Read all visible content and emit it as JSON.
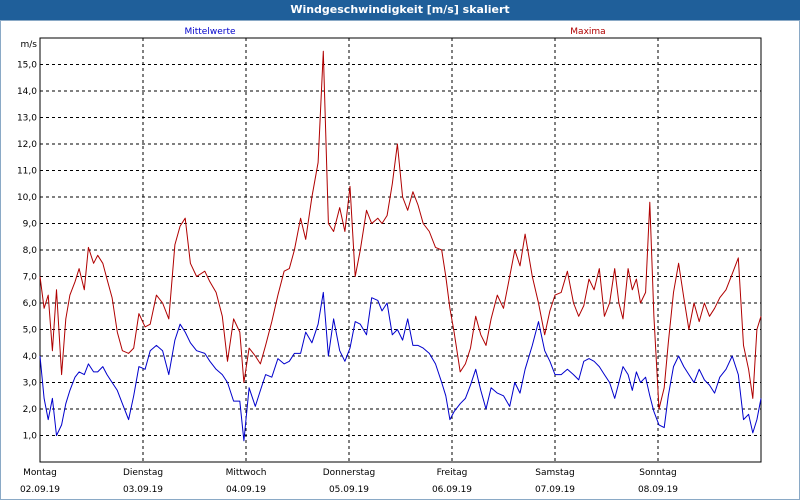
{
  "window": {
    "title": "Windgeschwindigkeit [m/s] skaliert"
  },
  "chart_data": {
    "type": "line",
    "title": "Windgeschwindigkeit [m/s] skaliert",
    "ylabel": "m/s",
    "ylim": [
      0,
      16
    ],
    "yticks": [
      "1,0",
      "2,0",
      "3,0",
      "4,0",
      "5,0",
      "6,0",
      "7,0",
      "8,0",
      "9,0",
      "10,0",
      "11,0",
      "12,0",
      "13,0",
      "14,0",
      "15,0"
    ],
    "xlim": [
      0,
      7
    ],
    "grid": true,
    "legend_placement": "top",
    "days": [
      {
        "name": "Montag",
        "date": "02.09.19"
      },
      {
        "name": "Dienstag",
        "date": "03.09.19"
      },
      {
        "name": "Mittwoch",
        "date": "04.09.19"
      },
      {
        "name": "Donnerstag",
        "date": "05.09.19"
      },
      {
        "name": "Freitag",
        "date": "06.09.19"
      },
      {
        "name": "Samstag",
        "date": "07.09.19"
      },
      {
        "name": "Sonntag",
        "date": "08.09.19"
      }
    ],
    "series": [
      {
        "name": "Mittelwerte",
        "color": "#0000cc",
        "points": [
          [
            0.0,
            4.0
          ],
          [
            0.04,
            2.4
          ],
          [
            0.08,
            1.6
          ],
          [
            0.12,
            2.4
          ],
          [
            0.16,
            1.0
          ],
          [
            0.21,
            1.4
          ],
          [
            0.25,
            2.2
          ],
          [
            0.29,
            2.7
          ],
          [
            0.34,
            3.2
          ],
          [
            0.38,
            3.4
          ],
          [
            0.43,
            3.3
          ],
          [
            0.47,
            3.7
          ],
          [
            0.52,
            3.4
          ],
          [
            0.56,
            3.4
          ],
          [
            0.61,
            3.6
          ],
          [
            0.65,
            3.3
          ],
          [
            0.7,
            3.0
          ],
          [
            0.75,
            2.7
          ],
          [
            0.8,
            2.2
          ],
          [
            0.86,
            1.6
          ],
          [
            0.91,
            2.5
          ],
          [
            0.96,
            3.6
          ],
          [
            1.02,
            3.5
          ],
          [
            1.07,
            4.2
          ],
          [
            1.13,
            4.4
          ],
          [
            1.19,
            4.2
          ],
          [
            1.25,
            3.3
          ],
          [
            1.31,
            4.6
          ],
          [
            1.36,
            5.2
          ],
          [
            1.41,
            4.9
          ],
          [
            1.46,
            4.5
          ],
          [
            1.52,
            4.2
          ],
          [
            1.6,
            4.1
          ],
          [
            1.65,
            3.8
          ],
          [
            1.71,
            3.5
          ],
          [
            1.77,
            3.3
          ],
          [
            1.82,
            3.0
          ],
          [
            1.88,
            2.3
          ],
          [
            1.94,
            2.3
          ],
          [
            1.98,
            0.8
          ],
          [
            2.03,
            2.8
          ],
          [
            2.09,
            2.1
          ],
          [
            2.14,
            2.7
          ],
          [
            2.19,
            3.3
          ],
          [
            2.25,
            3.2
          ],
          [
            2.31,
            3.9
          ],
          [
            2.37,
            3.7
          ],
          [
            2.42,
            3.8
          ],
          [
            2.47,
            4.1
          ],
          [
            2.53,
            4.1
          ],
          [
            2.58,
            4.9
          ],
          [
            2.64,
            4.5
          ],
          [
            2.7,
            5.2
          ],
          [
            2.75,
            6.4
          ],
          [
            2.8,
            4.0
          ],
          [
            2.85,
            5.4
          ],
          [
            2.91,
            4.2
          ],
          [
            2.96,
            3.8
          ],
          [
            3.01,
            4.3
          ],
          [
            3.06,
            5.3
          ],
          [
            3.11,
            5.2
          ],
          [
            3.17,
            4.8
          ],
          [
            3.22,
            6.2
          ],
          [
            3.28,
            6.1
          ],
          [
            3.32,
            5.7
          ],
          [
            3.37,
            6.0
          ],
          [
            3.42,
            4.8
          ],
          [
            3.47,
            5.0
          ],
          [
            3.52,
            4.6
          ],
          [
            3.57,
            5.4
          ],
          [
            3.62,
            4.4
          ],
          [
            3.67,
            4.4
          ],
          [
            3.72,
            4.3
          ],
          [
            3.78,
            4.1
          ],
          [
            3.84,
            3.7
          ],
          [
            3.9,
            3.0
          ],
          [
            3.94,
            2.5
          ],
          [
            3.98,
            1.6
          ],
          [
            4.02,
            1.9
          ],
          [
            4.08,
            2.2
          ],
          [
            4.13,
            2.4
          ],
          [
            4.18,
            2.9
          ],
          [
            4.23,
            3.5
          ],
          [
            4.28,
            2.7
          ],
          [
            4.33,
            2.0
          ],
          [
            4.38,
            2.8
          ],
          [
            4.44,
            2.6
          ],
          [
            4.5,
            2.5
          ],
          [
            4.56,
            2.1
          ],
          [
            4.61,
            3.0
          ],
          [
            4.66,
            2.6
          ],
          [
            4.71,
            3.5
          ],
          [
            4.78,
            4.4
          ],
          [
            4.84,
            5.3
          ],
          [
            4.9,
            4.2
          ],
          [
            4.95,
            3.8
          ],
          [
            5.0,
            3.3
          ],
          [
            5.06,
            3.3
          ],
          [
            5.12,
            3.5
          ],
          [
            5.18,
            3.3
          ],
          [
            5.23,
            3.1
          ],
          [
            5.28,
            3.8
          ],
          [
            5.33,
            3.9
          ],
          [
            5.38,
            3.8
          ],
          [
            5.43,
            3.6
          ],
          [
            5.48,
            3.3
          ],
          [
            5.53,
            3.0
          ],
          [
            5.58,
            2.4
          ],
          [
            5.62,
            3.0
          ],
          [
            5.66,
            3.6
          ],
          [
            5.71,
            3.3
          ],
          [
            5.75,
            2.7
          ],
          [
            5.79,
            3.4
          ],
          [
            5.83,
            3.0
          ],
          [
            5.88,
            3.2
          ],
          [
            5.92,
            2.5
          ],
          [
            5.96,
            1.9
          ],
          [
            6.01,
            1.4
          ],
          [
            6.06,
            1.3
          ],
          [
            6.1,
            2.5
          ],
          [
            6.15,
            3.6
          ],
          [
            6.2,
            4.0
          ],
          [
            6.25,
            3.6
          ],
          [
            6.3,
            3.3
          ],
          [
            6.35,
            3.0
          ],
          [
            6.4,
            3.5
          ],
          [
            6.45,
            3.1
          ],
          [
            6.5,
            2.9
          ],
          [
            6.55,
            2.6
          ],
          [
            6.6,
            3.2
          ],
          [
            6.66,
            3.5
          ],
          [
            6.72,
            4.0
          ],
          [
            6.78,
            3.3
          ],
          [
            6.83,
            1.6
          ],
          [
            6.88,
            1.8
          ],
          [
            6.92,
            1.1
          ],
          [
            6.96,
            1.6
          ],
          [
            7.0,
            2.4
          ]
        ]
      },
      {
        "name": "Maxima",
        "color": "#b00000",
        "points": [
          [
            0.0,
            7.0
          ],
          [
            0.04,
            5.8
          ],
          [
            0.08,
            6.3
          ],
          [
            0.12,
            4.2
          ],
          [
            0.16,
            6.5
          ],
          [
            0.21,
            3.3
          ],
          [
            0.25,
            5.4
          ],
          [
            0.29,
            6.3
          ],
          [
            0.34,
            6.8
          ],
          [
            0.38,
            7.3
          ],
          [
            0.43,
            6.5
          ],
          [
            0.47,
            8.1
          ],
          [
            0.52,
            7.5
          ],
          [
            0.56,
            7.8
          ],
          [
            0.61,
            7.5
          ],
          [
            0.65,
            6.9
          ],
          [
            0.7,
            6.2
          ],
          [
            0.75,
            4.9
          ],
          [
            0.8,
            4.2
          ],
          [
            0.86,
            4.1
          ],
          [
            0.91,
            4.3
          ],
          [
            0.96,
            5.6
          ],
          [
            1.02,
            5.1
          ],
          [
            1.07,
            5.2
          ],
          [
            1.13,
            6.3
          ],
          [
            1.19,
            6.0
          ],
          [
            1.25,
            5.4
          ],
          [
            1.31,
            8.2
          ],
          [
            1.36,
            8.9
          ],
          [
            1.41,
            9.2
          ],
          [
            1.46,
            7.5
          ],
          [
            1.52,
            7.0
          ],
          [
            1.6,
            7.2
          ],
          [
            1.65,
            6.8
          ],
          [
            1.71,
            6.4
          ],
          [
            1.77,
            5.5
          ],
          [
            1.82,
            3.8
          ],
          [
            1.88,
            5.4
          ],
          [
            1.94,
            4.9
          ],
          [
            1.98,
            3.0
          ],
          [
            2.03,
            4.3
          ],
          [
            2.09,
            4.0
          ],
          [
            2.14,
            3.7
          ],
          [
            2.19,
            4.4
          ],
          [
            2.25,
            5.3
          ],
          [
            2.31,
            6.3
          ],
          [
            2.37,
            7.2
          ],
          [
            2.42,
            7.3
          ],
          [
            2.47,
            8.0
          ],
          [
            2.53,
            9.2
          ],
          [
            2.58,
            8.4
          ],
          [
            2.64,
            10.0
          ],
          [
            2.7,
            11.3
          ],
          [
            2.75,
            15.5
          ],
          [
            2.8,
            9.0
          ],
          [
            2.85,
            8.7
          ],
          [
            2.91,
            9.6
          ],
          [
            2.96,
            8.7
          ],
          [
            3.01,
            10.4
          ],
          [
            3.06,
            7.0
          ],
          [
            3.11,
            8.0
          ],
          [
            3.17,
            9.5
          ],
          [
            3.22,
            9.0
          ],
          [
            3.28,
            9.2
          ],
          [
            3.32,
            9.0
          ],
          [
            3.37,
            9.3
          ],
          [
            3.42,
            10.5
          ],
          [
            3.47,
            12.0
          ],
          [
            3.52,
            10.0
          ],
          [
            3.57,
            9.5
          ],
          [
            3.62,
            10.2
          ],
          [
            3.67,
            9.7
          ],
          [
            3.72,
            9.0
          ],
          [
            3.78,
            8.7
          ],
          [
            3.84,
            8.1
          ],
          [
            3.9,
            8.0
          ],
          [
            3.94,
            7.0
          ],
          [
            3.98,
            5.8
          ],
          [
            4.02,
            4.9
          ],
          [
            4.08,
            3.4
          ],
          [
            4.13,
            3.7
          ],
          [
            4.18,
            4.3
          ],
          [
            4.23,
            5.5
          ],
          [
            4.28,
            4.8
          ],
          [
            4.33,
            4.4
          ],
          [
            4.38,
            5.4
          ],
          [
            4.44,
            6.3
          ],
          [
            4.5,
            5.8
          ],
          [
            4.56,
            7.0
          ],
          [
            4.61,
            8.0
          ],
          [
            4.66,
            7.4
          ],
          [
            4.71,
            8.6
          ],
          [
            4.78,
            7.0
          ],
          [
            4.84,
            6.0
          ],
          [
            4.9,
            4.8
          ],
          [
            4.95,
            5.7
          ],
          [
            5.0,
            6.3
          ],
          [
            5.06,
            6.4
          ],
          [
            5.12,
            7.2
          ],
          [
            5.18,
            6.0
          ],
          [
            5.23,
            5.5
          ],
          [
            5.28,
            5.9
          ],
          [
            5.33,
            6.9
          ],
          [
            5.38,
            6.5
          ],
          [
            5.43,
            7.3
          ],
          [
            5.48,
            5.5
          ],
          [
            5.53,
            6.0
          ],
          [
            5.58,
            7.3
          ],
          [
            5.62,
            6.0
          ],
          [
            5.66,
            5.4
          ],
          [
            5.71,
            7.3
          ],
          [
            5.75,
            6.5
          ],
          [
            5.79,
            6.9
          ],
          [
            5.83,
            6.0
          ],
          [
            5.88,
            6.4
          ],
          [
            5.92,
            9.8
          ],
          [
            5.96,
            5.5
          ],
          [
            6.01,
            2.0
          ],
          [
            6.06,
            2.8
          ],
          [
            6.1,
            4.5
          ],
          [
            6.15,
            6.4
          ],
          [
            6.2,
            7.5
          ],
          [
            6.25,
            6.2
          ],
          [
            6.3,
            5.0
          ],
          [
            6.35,
            6.0
          ],
          [
            6.4,
            5.3
          ],
          [
            6.45,
            6.0
          ],
          [
            6.5,
            5.5
          ],
          [
            6.55,
            5.8
          ],
          [
            6.6,
            6.2
          ],
          [
            6.66,
            6.5
          ],
          [
            6.72,
            7.1
          ],
          [
            6.78,
            7.7
          ],
          [
            6.83,
            4.4
          ],
          [
            6.88,
            3.5
          ],
          [
            6.92,
            2.4
          ],
          [
            6.96,
            5.0
          ],
          [
            7.0,
            5.5
          ]
        ]
      }
    ]
  }
}
